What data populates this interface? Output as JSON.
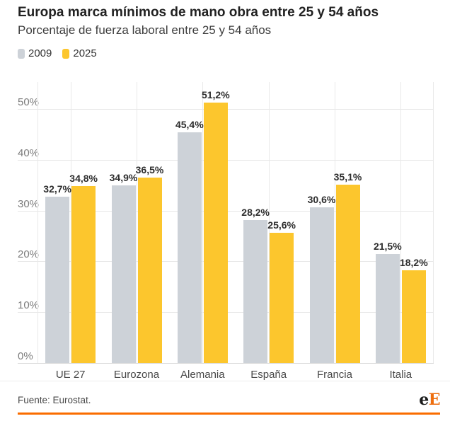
{
  "chart_data": {
    "type": "bar",
    "title": "Europa marca mínimos de mano obra entre 25 y 54 años",
    "subtitle": "Porcentaje de fuerza laboral entre 25 y 54 años",
    "categories": [
      "UE 27",
      "Eurozona",
      "Alemania",
      "España",
      "Francia",
      "Italia"
    ],
    "series": [
      {
        "name": "2009",
        "color": "#cdd2d8",
        "values": [
          32.7,
          34.9,
          45.4,
          28.2,
          30.6,
          21.5
        ]
      },
      {
        "name": "2025",
        "color": "#fcc62d",
        "values": [
          34.8,
          36.5,
          51.2,
          25.6,
          35.1,
          18.2
        ]
      }
    ],
    "value_label_format": "decimal-comma-percent",
    "xlabel": "",
    "ylabel": "",
    "ylim": [
      0,
      55
    ],
    "yticks": [
      0,
      10,
      20,
      30,
      40,
      50
    ],
    "ytick_labels": [
      "0%",
      "10%",
      "20%",
      "30%",
      "40%",
      "50%"
    ],
    "grid": true,
    "legend_position": "top-left"
  },
  "footer": {
    "source": "Fuente: Eurostat.",
    "logo_e": "e",
    "logo_cap": "E"
  },
  "colors": {
    "bar_2009": "#cdd2d8",
    "bar_2025": "#fcc62d",
    "accent_orange": "#fa6d00",
    "logo_orange": "#ee6d0d",
    "grid": "#e7e7e7",
    "axis_text": "#7c7c7c",
    "category_text": "#484848",
    "value_text": "#2e2e2e",
    "title_text": "#212121",
    "subtitle_text": "#3d3d3d"
  }
}
